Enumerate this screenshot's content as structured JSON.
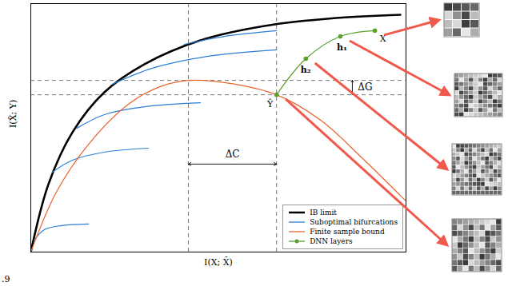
{
  "chart_data": {
    "type": "line",
    "x_label": "I(X; X̂)",
    "y_label": "I(X̂; Y)",
    "xlim": [
      0,
      1
    ],
    "ylim": [
      0,
      1
    ],
    "xticks": [],
    "yticks": [],
    "tick_labels": false,
    "grid": false,
    "legend": "lower right",
    "series": [
      {
        "name": "IB limit",
        "color": "#000000",
        "x": [
          0,
          0.047,
          0.111,
          0.196,
          0.303,
          0.452,
          0.623,
          0.814,
          0.985
        ],
        "values": [
          0,
          0.273,
          0.482,
          0.643,
          0.756,
          0.852,
          0.91,
          0.942,
          0.955
        ]
      },
      {
        "name": "Suboptimal bifurcations",
        "color": "#2a7fd4",
        "curves": [
          {
            "x": [
              0.009,
              0.036,
              0.079,
              0.154
            ],
            "values": [
              0.048,
              0.09,
              0.106,
              0.113
            ]
          },
          {
            "x": [
              0.058,
              0.111,
              0.196,
              0.313
            ],
            "values": [
              0.322,
              0.37,
              0.402,
              0.418
            ]
          },
          {
            "x": [
              0.122,
              0.196,
              0.303,
              0.452
            ],
            "values": [
              0.498,
              0.553,
              0.585,
              0.601
            ]
          },
          {
            "x": [
              0.217,
              0.324,
              0.473,
              0.655
            ],
            "values": [
              0.675,
              0.74,
              0.788,
              0.814
            ]
          },
          {
            "x": [
              0.409,
              0.516,
              0.655
            ],
            "values": [
              0.836,
              0.868,
              0.891
            ]
          }
        ]
      },
      {
        "name": "Finite sample bound",
        "color": "#e8642c",
        "x": [
          0,
          0.068,
          0.154,
          0.26,
          0.345,
          0.42,
          0.516,
          0.655,
          0.772,
          0.878,
          1.0
        ],
        "values": [
          0,
          0.241,
          0.434,
          0.595,
          0.666,
          0.691,
          0.682,
          0.633,
          0.531,
          0.386,
          0.205
        ]
      },
      {
        "name": "DNN layers",
        "color": "#5aa02c",
        "marker": "circle",
        "x": [
          0.655,
          0.733,
          0.825,
          0.917
        ],
        "values": [
          0.633,
          0.778,
          0.868,
          0.891
        ],
        "point_labels": [
          "Ŷ",
          "h₂",
          "h₁",
          "X"
        ]
      }
    ],
    "reference_lines": {
      "x": [
        0.42,
        0.655
      ],
      "y": [
        0.691,
        0.633
      ]
    },
    "annotations": [
      {
        "text": "ΔC",
        "x": [
          0.42,
          0.655
        ],
        "y": 0.354
      },
      {
        "text": "ΔG",
        "x": 0.857,
        "y": [
          0.633,
          0.691
        ]
      },
      {
        "text": ".9"
      }
    ]
  }
}
